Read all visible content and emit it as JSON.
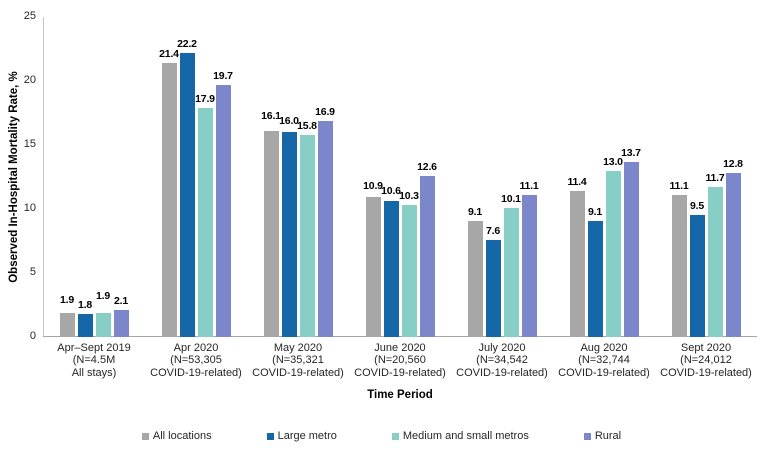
{
  "chart_data": {
    "type": "bar",
    "title": "",
    "xlabel": "Time Period",
    "ylabel": "Observed In-Hospital Mortality Rate, %",
    "ylim": [
      0,
      25
    ],
    "yticks": [
      0,
      5,
      10,
      15,
      20,
      25
    ],
    "grid": false,
    "legend_position": "bottom",
    "value_labels": true,
    "value_label_decimals": 1,
    "patterned_category_index": 0,
    "categories": [
      [
        "Apr–Sept 2019",
        "(N=4.5M",
        "All stays)"
      ],
      [
        "Apr 2020",
        "(N=53,305",
        "COVID-19-related)"
      ],
      [
        "May 2020",
        "(N=35,321",
        "COVID-19-related)"
      ],
      [
        "June 2020",
        "(N=20,560",
        "COVID-19-related)"
      ],
      [
        "July 2020",
        "(N=34,542",
        "COVID-19-related)"
      ],
      [
        "Aug 2020",
        "(N=32,744",
        "COVID-19-related)"
      ],
      [
        "Sept 2020",
        "(N=24,012",
        "COVID-19-related)"
      ]
    ],
    "series": [
      {
        "name": "All locations",
        "color": "#a7a7a7",
        "values": [
          1.9,
          21.4,
          16.1,
          10.9,
          9.1,
          11.4,
          11.1
        ]
      },
      {
        "name": "Large metro",
        "color": "#1667a8",
        "values": [
          1.8,
          22.2,
          16.0,
          10.6,
          7.6,
          9.1,
          9.5
        ]
      },
      {
        "name": "Medium and small metros",
        "color": "#87cec6",
        "values": [
          1.9,
          17.9,
          15.8,
          10.3,
          10.1,
          13.0,
          11.7
        ]
      },
      {
        "name": "Rural",
        "color": "#7c86ca",
        "values": [
          2.1,
          19.7,
          16.9,
          12.6,
          11.1,
          13.7,
          12.8
        ]
      }
    ]
  }
}
